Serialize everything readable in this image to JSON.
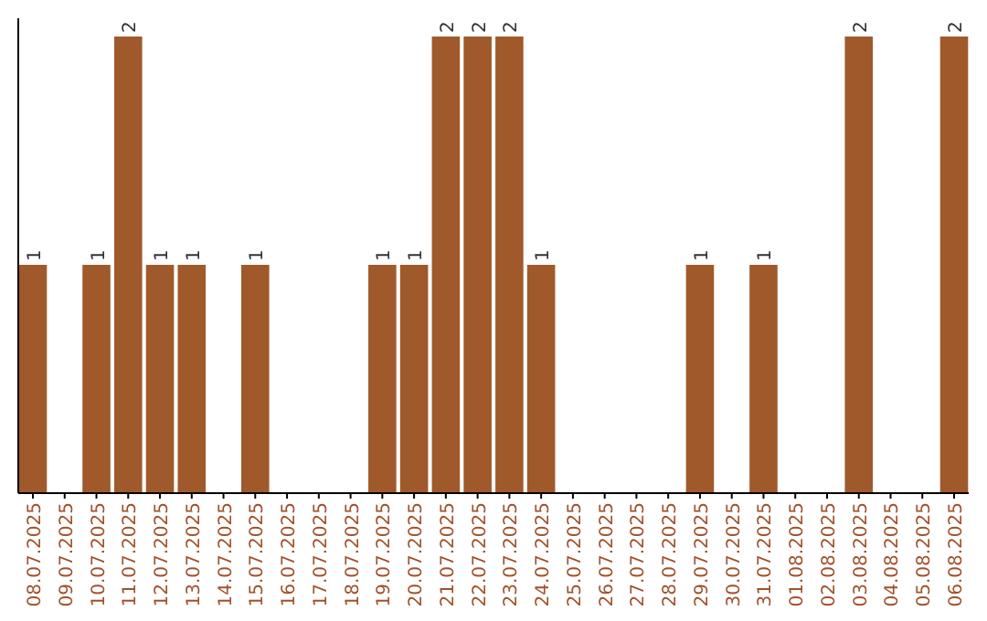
{
  "chart_data": {
    "type": "bar",
    "categories": [
      "08.07.2025",
      "09.07.2025",
      "10.07.2025",
      "11.07.2025",
      "12.07.2025",
      "13.07.2025",
      "14.07.2025",
      "15.07.2025",
      "16.07.2025",
      "17.07.2025",
      "18.07.2025",
      "19.07.2025",
      "20.07.2025",
      "21.07.2025",
      "22.07.2025",
      "23.07.2025",
      "24.07.2025",
      "25.07.2025",
      "26.07.2025",
      "27.07.2025",
      "28.07.2025",
      "29.07.2025",
      "30.07.2025",
      "31.07.2025",
      "01.08.2025",
      "02.08.2025",
      "03.08.2025",
      "04.08.2025",
      "05.08.2025",
      "06.08.2025"
    ],
    "values": [
      1,
      0,
      1,
      2,
      1,
      1,
      0,
      1,
      0,
      0,
      0,
      1,
      1,
      2,
      2,
      2,
      1,
      0,
      0,
      0,
      0,
      1,
      0,
      1,
      0,
      0,
      2,
      0,
      0,
      2
    ],
    "value_labels": [
      "1",
      null,
      "1",
      "2",
      "1",
      "1",
      null,
      "1",
      null,
      null,
      null,
      "1",
      "1",
      "2",
      "2",
      "2",
      "1",
      null,
      null,
      null,
      null,
      "1",
      null,
      "1",
      null,
      null,
      "2",
      null,
      null,
      "2"
    ],
    "color": "#a0592a",
    "ylim": [
      0,
      2.08
    ],
    "tick_labels": "x"
  }
}
